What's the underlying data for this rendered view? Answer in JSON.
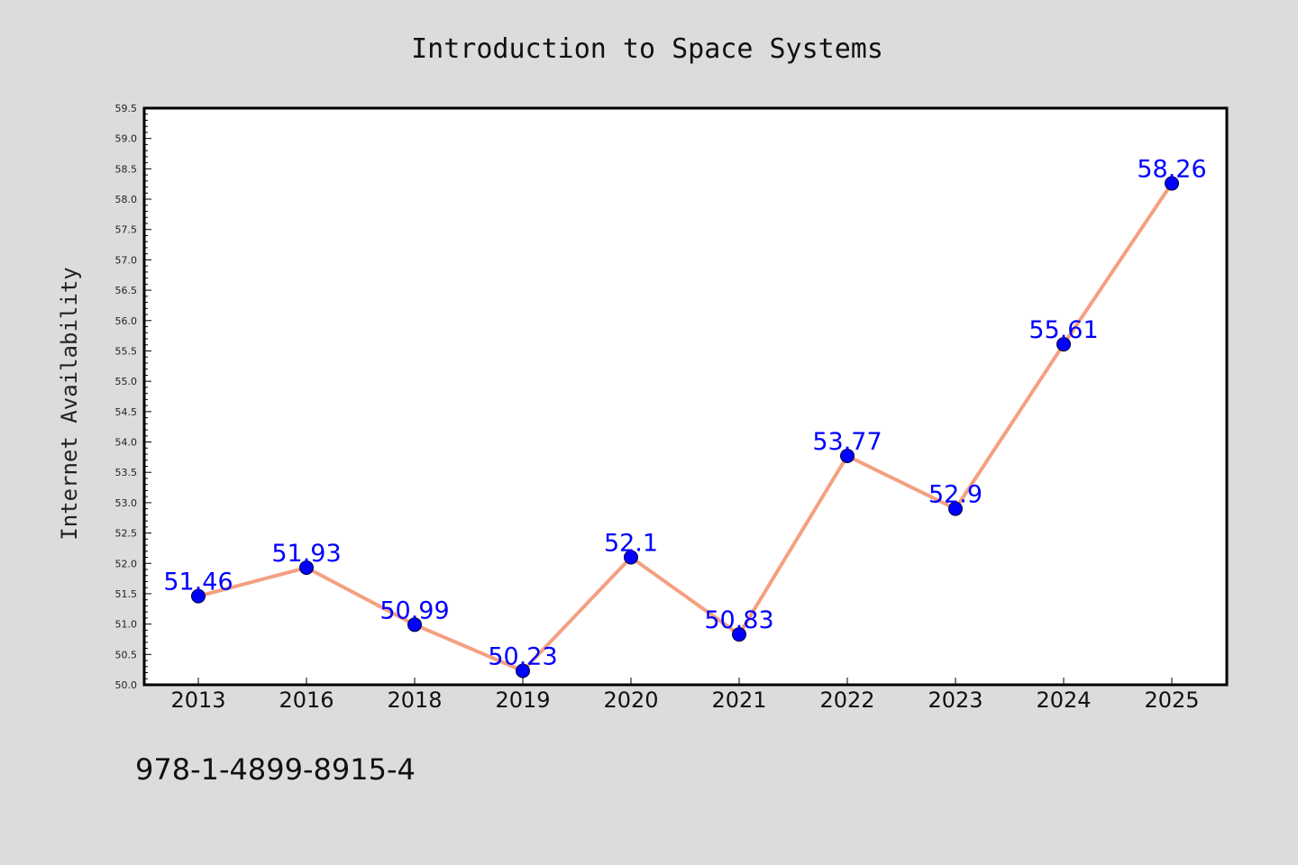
{
  "chart_data": {
    "type": "line",
    "title": "Introduction to Space Systems",
    "xlabel": "",
    "ylabel": "Internet Availability",
    "categories": [
      "2013",
      "2016",
      "2018",
      "2019",
      "2020",
      "2021",
      "2022",
      "2023",
      "2024",
      "2025"
    ],
    "series": [
      {
        "values": [
          51.46,
          51.93,
          50.99,
          50.23,
          52.1,
          50.83,
          53.77,
          52.9,
          55.61,
          58.26
        ],
        "labels": [
          "51.46",
          "51.93",
          "50.99",
          "50.23",
          "52.1",
          "50.83",
          "53.77",
          "52.9",
          "55.61",
          "58.26"
        ]
      }
    ],
    "ylim": [
      50.0,
      59.5
    ],
    "yticks": [
      "50.0",
      "50.5",
      "51.0",
      "51.5",
      "52.0",
      "52.5",
      "53.0",
      "53.5",
      "54.0",
      "54.5",
      "55.0",
      "55.5",
      "56.0",
      "56.5",
      "57.0",
      "57.5",
      "58.0",
      "58.5",
      "59.0",
      "59.5"
    ],
    "grid": false,
    "legend": "none"
  },
  "annotation": {
    "isbn": "978-1-4899-8915-4"
  },
  "colors": {
    "background": "#dcdcdc",
    "plot_background": "#ffffff",
    "line": "#f4a080",
    "marker": "#0000ff",
    "label": "#0000ff"
  }
}
